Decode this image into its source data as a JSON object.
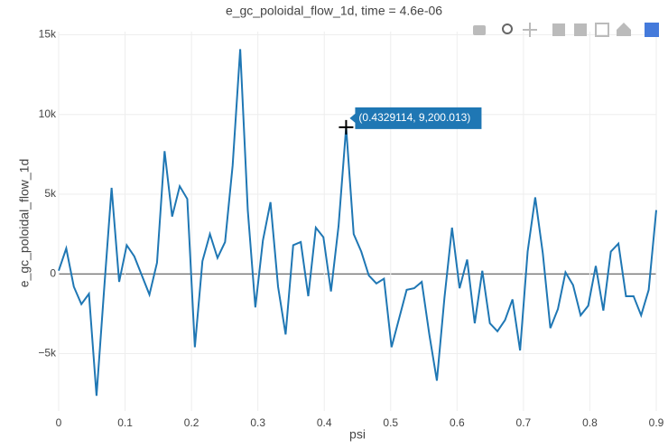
{
  "chart_data": {
    "type": "line",
    "title": "e_gc_poloidal_flow_1d,  time = 4.6e-06",
    "x_label": "psi",
    "y_label": "e_gc_poloidal_flow_1d",
    "hover_label": "(0.4329114, 9,200.013)",
    "x": [
      0,
      0.0114,
      0.0228,
      0.0342,
      0.0456,
      0.057,
      0.0684,
      0.0797,
      0.0911,
      0.1025,
      0.1139,
      0.1253,
      0.1367,
      0.1481,
      0.1595,
      0.1709,
      0.1823,
      0.1937,
      0.2051,
      0.2165,
      0.2278,
      0.2392,
      0.2506,
      0.262,
      0.2734,
      0.2848,
      0.2962,
      0.3076,
      0.319,
      0.3304,
      0.3418,
      0.3532,
      0.3646,
      0.3759,
      0.3873,
      0.3987,
      0.4101,
      0.4215,
      0.4329114,
      0.4443,
      0.4557,
      0.4671,
      0.4785,
      0.4899,
      0.5013,
      0.5127,
      0.5241,
      0.5354,
      0.5468,
      0.5582,
      0.5696,
      0.581,
      0.5924,
      0.6038,
      0.6152,
      0.6266,
      0.638,
      0.6494,
      0.6608,
      0.6722,
      0.6835,
      0.6949,
      0.7063,
      0.7177,
      0.7291,
      0.7405,
      0.7519,
      0.7633,
      0.7747,
      0.7861,
      0.7975,
      0.8089,
      0.8203,
      0.8316,
      0.843,
      0.8544,
      0.8658,
      0.8772,
      0.8886,
      0.9
    ],
    "series": [
      {
        "color": "#1f77b4",
        "values": [
          200,
          1600,
          -800,
          -1900,
          -1250,
          -7650,
          -1000,
          5400,
          -500,
          1800,
          1100,
          -100,
          -1300,
          700,
          7700,
          3600,
          5500,
          4700,
          -4600,
          800,
          2500,
          1000,
          2000,
          6800,
          14100,
          4000,
          -2100,
          2100,
          4500,
          -800,
          -3800,
          1800,
          2000,
          -1400,
          2900,
          2300,
          -1100,
          3000,
          9200.013,
          2500,
          1400,
          -100,
          -600,
          -300,
          -4600,
          -2800,
          -1000,
          -900,
          -500,
          -3800,
          -6700,
          -1500,
          2900,
          -900,
          900,
          -3100,
          200,
          -3100,
          -3600,
          -2900,
          -1600,
          -4800,
          1400,
          4800,
          1300,
          -3400,
          -2200,
          100,
          -700,
          -2600,
          -2000,
          500,
          -2300,
          1400,
          1900,
          -1400,
          -1400,
          -2600,
          -1000,
          4000
        ]
      }
    ],
    "xlim": [
      0,
      0.9
    ],
    "xticks": [
      0,
      0.1,
      0.2,
      0.3,
      0.4,
      0.5,
      0.6,
      0.7,
      0.8,
      0.9
    ],
    "ylim": [
      -8600,
      15200
    ],
    "yticks": [
      {
        "value": -5000,
        "label": "−5k"
      },
      0,
      {
        "value": 5000,
        "label": "5k"
      },
      {
        "value": 10000,
        "label": "10k"
      },
      {
        "value": 15000,
        "label": "15k"
      }
    ],
    "grid": true
  }
}
